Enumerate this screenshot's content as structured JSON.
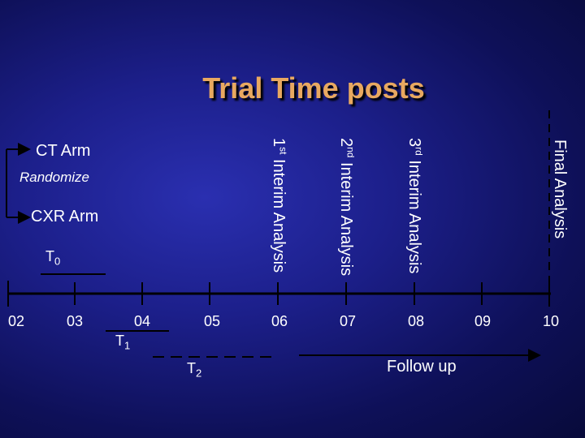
{
  "title": "Trial Time posts",
  "arms": {
    "ct": "CT Arm",
    "randomize": "Randomize",
    "cxr": "CXR Arm"
  },
  "periods": {
    "t0": {
      "label": "T",
      "sub": "0"
    },
    "t1": {
      "label": "T",
      "sub": "1"
    },
    "t2": {
      "label": "T",
      "sub": "2"
    }
  },
  "interim": [
    {
      "ord": "1",
      "suffix": "st",
      "text": "Interim Analysis"
    },
    {
      "ord": "2",
      "suffix": "nd",
      "text": "Interim Analysis"
    },
    {
      "ord": "3",
      "suffix": "rd",
      "text": "Interim Analysis"
    }
  ],
  "final_analysis": "Final Analysis",
  "years": [
    "02",
    "03",
    "04",
    "05",
    "06",
    "07",
    "08",
    "09",
    "10"
  ],
  "follow_up": "Follow up"
}
